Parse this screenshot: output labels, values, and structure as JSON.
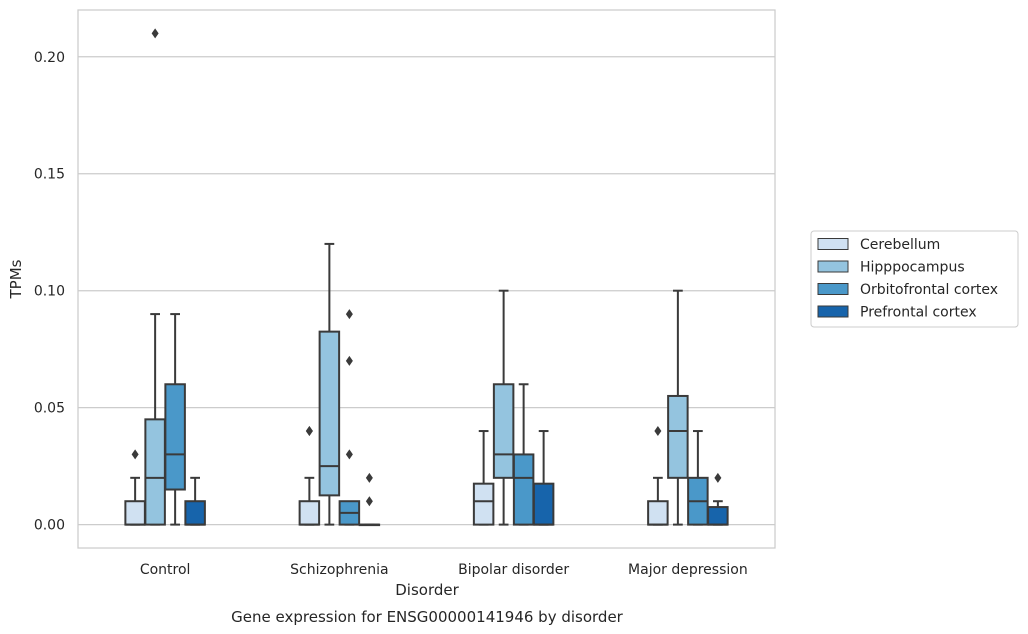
{
  "chart_data": {
    "type": "box",
    "title": "",
    "caption": "Gene expression for ENSG00000141946 by disorder",
    "xlabel": "Disorder",
    "ylabel": "TPMs",
    "ylim": [
      -0.01,
      0.22
    ],
    "yticks": [
      0.0,
      0.05,
      0.1,
      0.15,
      0.2
    ],
    "ytick_labels": [
      "0.00",
      "0.05",
      "0.10",
      "0.15",
      "0.20"
    ],
    "grid": "horizontal",
    "legend_position": "right",
    "categories": [
      "Control",
      "Schizophrenia",
      "Bipolar disorder",
      "Major depression"
    ],
    "series": [
      {
        "name": "Cerebellum",
        "color": "#d0e1f2",
        "boxes": [
          {
            "whislo": 0.0,
            "q1": 0.0,
            "med": 0.0,
            "q3": 0.01,
            "whishi": 0.02,
            "fliers": [
              0.03
            ]
          },
          {
            "whislo": 0.0,
            "q1": 0.0,
            "med": 0.0,
            "q3": 0.01,
            "whishi": 0.02,
            "fliers": [
              0.04,
              0.04
            ]
          },
          {
            "whislo": 0.0,
            "q1": 0.0,
            "med": 0.01,
            "q3": 0.0175,
            "whishi": 0.04,
            "fliers": []
          },
          {
            "whislo": 0.0,
            "q1": 0.0,
            "med": 0.0,
            "q3": 0.01,
            "whishi": 0.02,
            "fliers": [
              0.04
            ]
          }
        ]
      },
      {
        "name": "Hipppocampus",
        "color": "#94c4df",
        "boxes": [
          {
            "whislo": 0.0,
            "q1": 0.0,
            "med": 0.02,
            "q3": 0.045,
            "whishi": 0.09,
            "fliers": [
              0.21
            ]
          },
          {
            "whislo": 0.0,
            "q1": 0.0125,
            "med": 0.025,
            "q3": 0.0825,
            "whishi": 0.12,
            "fliers": []
          },
          {
            "whislo": 0.0,
            "q1": 0.02,
            "med": 0.03,
            "q3": 0.06,
            "whishi": 0.1,
            "fliers": []
          },
          {
            "whislo": 0.0,
            "q1": 0.02,
            "med": 0.04,
            "q3": 0.055,
            "whishi": 0.1,
            "fliers": []
          }
        ]
      },
      {
        "name": "Orbitofrontal cortex",
        "color": "#4a98c9",
        "boxes": [
          {
            "whislo": 0.0,
            "q1": 0.015,
            "med": 0.03,
            "q3": 0.06,
            "whishi": 0.09,
            "fliers": []
          },
          {
            "whislo": 0.0,
            "q1": 0.0,
            "med": 0.005,
            "q3": 0.01,
            "whishi": 0.01,
            "fliers": [
              0.09,
              0.07,
              0.03
            ]
          },
          {
            "whislo": 0.0,
            "q1": 0.0,
            "med": 0.02,
            "q3": 0.03,
            "whishi": 0.06,
            "fliers": []
          },
          {
            "whislo": 0.0,
            "q1": 0.0,
            "med": 0.01,
            "q3": 0.02,
            "whishi": 0.04,
            "fliers": []
          }
        ]
      },
      {
        "name": "Prefrontal cortex",
        "color": "#1764ab",
        "boxes": [
          {
            "whislo": 0.0,
            "q1": 0.0,
            "med": 0.0,
            "q3": 0.01,
            "whishi": 0.02,
            "fliers": []
          },
          {
            "whislo": 0.0,
            "q1": 0.0,
            "med": 0.0,
            "q3": 0.0,
            "whishi": 0.0,
            "fliers": [
              0.02,
              0.01
            ]
          },
          {
            "whislo": 0.0,
            "q1": 0.0,
            "med": 0.0,
            "q3": 0.0175,
            "whishi": 0.04,
            "fliers": []
          },
          {
            "whislo": 0.0,
            "q1": 0.0,
            "med": 0.0,
            "q3": 0.0075,
            "whishi": 0.01,
            "fliers": [
              0.02
            ]
          }
        ]
      }
    ]
  }
}
